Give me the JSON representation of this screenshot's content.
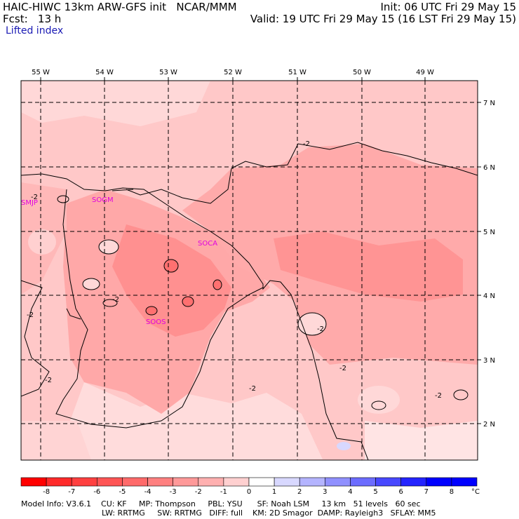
{
  "header": {
    "model": "HAIC-HIWC 13km ARW-GFS init   NCAR/MMM",
    "fcst": "Fcst:   13 h",
    "field": "Lifted index",
    "init": "Init: 06 UTC Fri 29 May 15",
    "valid": "Valid: 19 UTC Fri 29 May 15 (16 LST Fri 29 May 15)"
  },
  "map": {
    "lon_labels": [
      "55 W",
      "54 W",
      "53 W",
      "52 W",
      "51 W",
      "50 W",
      "49 W"
    ],
    "lat_labels": [
      "7 N",
      "6 N",
      "5 N",
      "4 N",
      "3 N",
      "2 N"
    ],
    "contour_labels": [
      "-2",
      "-2",
      "-2",
      "-2",
      "-2",
      "-2",
      "-2",
      "-2",
      "-2"
    ],
    "stations": [
      "SMJP",
      "SOGM",
      "SOCA",
      "SOOS"
    ]
  },
  "colorbar": {
    "ticks": [
      "-8",
      "-7",
      "-6",
      "-5",
      "-4",
      "-3",
      "-2",
      "-1",
      "0",
      "1",
      "2",
      "3",
      "4",
      "5",
      "6",
      "7",
      "8"
    ],
    "unit": "°C",
    "colors": [
      "#ff0000",
      "#ff2a2a",
      "#ff4040",
      "#ff5555",
      "#ff6a6a",
      "#ff8080",
      "#ff9999",
      "#ffb0b0",
      "#ffd0d0",
      "#ffffff",
      "#d8d8ff",
      "#b4b4ff",
      "#9090ff",
      "#6c6cff",
      "#4848ff",
      "#2424ff",
      "#0000ff"
    ]
  },
  "footer": {
    "line1": "Model Info: V3.6.1    CU: KF     MP: Thompson     PBL: YSU      SF: Noah LSM     13 km   51 levels   60 sec",
    "line2": "LW: RRTMG     SW: RRTMG   DIFF: full    KM: 2D Smagor  DAMP: Rayleigh3   SFLAY: MM5"
  }
}
